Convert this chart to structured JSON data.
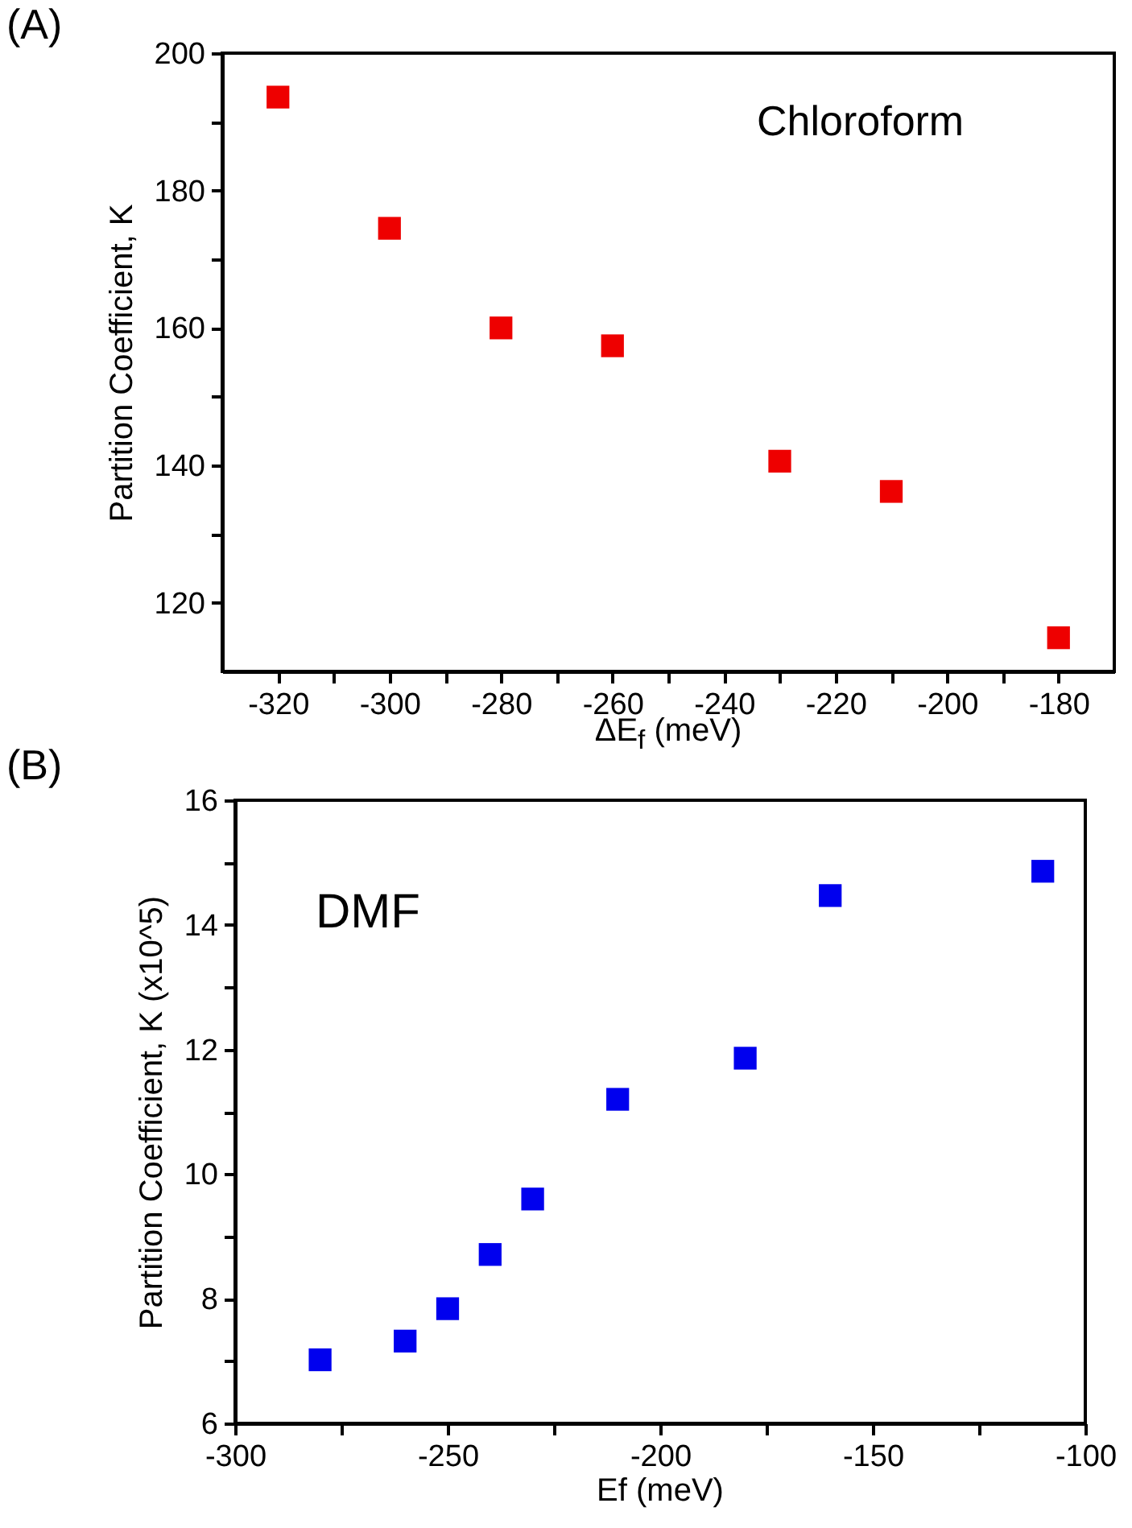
{
  "chart_data": [
    {
      "type": "scatter",
      "xlabel": "ΔE$_{f}$ (meV)",
      "ylabel": "Partition Coefficient, K",
      "annotations": [
        "(A)",
        "Chloroform"
      ],
      "x": [
        -320,
        -300,
        -280,
        -260,
        -230,
        -210,
        -180
      ],
      "series": [
        {
          "color": "#ee0000",
          "values": [
            193.6,
            174.5,
            160.0,
            157.4,
            140.6,
            136.2,
            114.9
          ]
        }
      ],
      "xlim": [
        -330,
        -170
      ],
      "ylim": [
        110,
        200
      ],
      "xticks": [
        -320,
        {
          "value": -310,
          "label": null
        },
        -300,
        {
          "value": -290,
          "label": null
        },
        -280,
        {
          "value": -270,
          "label": null
        },
        -260,
        {
          "value": -250,
          "label": null
        },
        -240,
        {
          "value": -230,
          "label": null
        },
        -220,
        {
          "value": -210,
          "label": null
        },
        -200,
        {
          "value": -190,
          "label": null
        },
        -180
      ],
      "yticks": [
        120,
        {
          "value": 130,
          "label": null
        },
        140,
        {
          "value": 150,
          "label": null
        },
        160,
        {
          "value": 170,
          "label": null
        },
        180,
        {
          "value": 190,
          "label": null
        },
        200
      ],
      "marker": "square",
      "grid": false
    },
    {
      "type": "scatter",
      "xlabel": "Ef (meV)",
      "ylabel": "Partition Coefficient, K (x10^5)",
      "annotations": [
        "(B)",
        "DMF"
      ],
      "x": [
        -280,
        -260,
        -250,
        -240,
        -230,
        -210,
        -180,
        -160,
        -110
      ],
      "series": [
        {
          "color": "#0000ee",
          "values": [
            7.02,
            7.32,
            7.84,
            8.71,
            9.6,
            11.2,
            11.86,
            14.47,
            14.86
          ]
        }
      ],
      "xlim": [
        -300,
        -100
      ],
      "ylim": [
        6,
        16
      ],
      "xticks": [
        -300,
        {
          "value": -275,
          "label": null
        },
        -250,
        {
          "value": -225,
          "label": null
        },
        -200,
        {
          "value": -175,
          "label": null
        },
        -150,
        {
          "value": -125,
          "label": null
        },
        -100
      ],
      "yticks": [
        6,
        {
          "value": 7,
          "label": null
        },
        8,
        {
          "value": 9,
          "label": null
        },
        10,
        {
          "value": 11,
          "label": null
        },
        12,
        {
          "value": 13,
          "label": null
        },
        14,
        {
          "value": 15,
          "label": null
        },
        16
      ],
      "marker": "square",
      "grid": false
    }
  ]
}
